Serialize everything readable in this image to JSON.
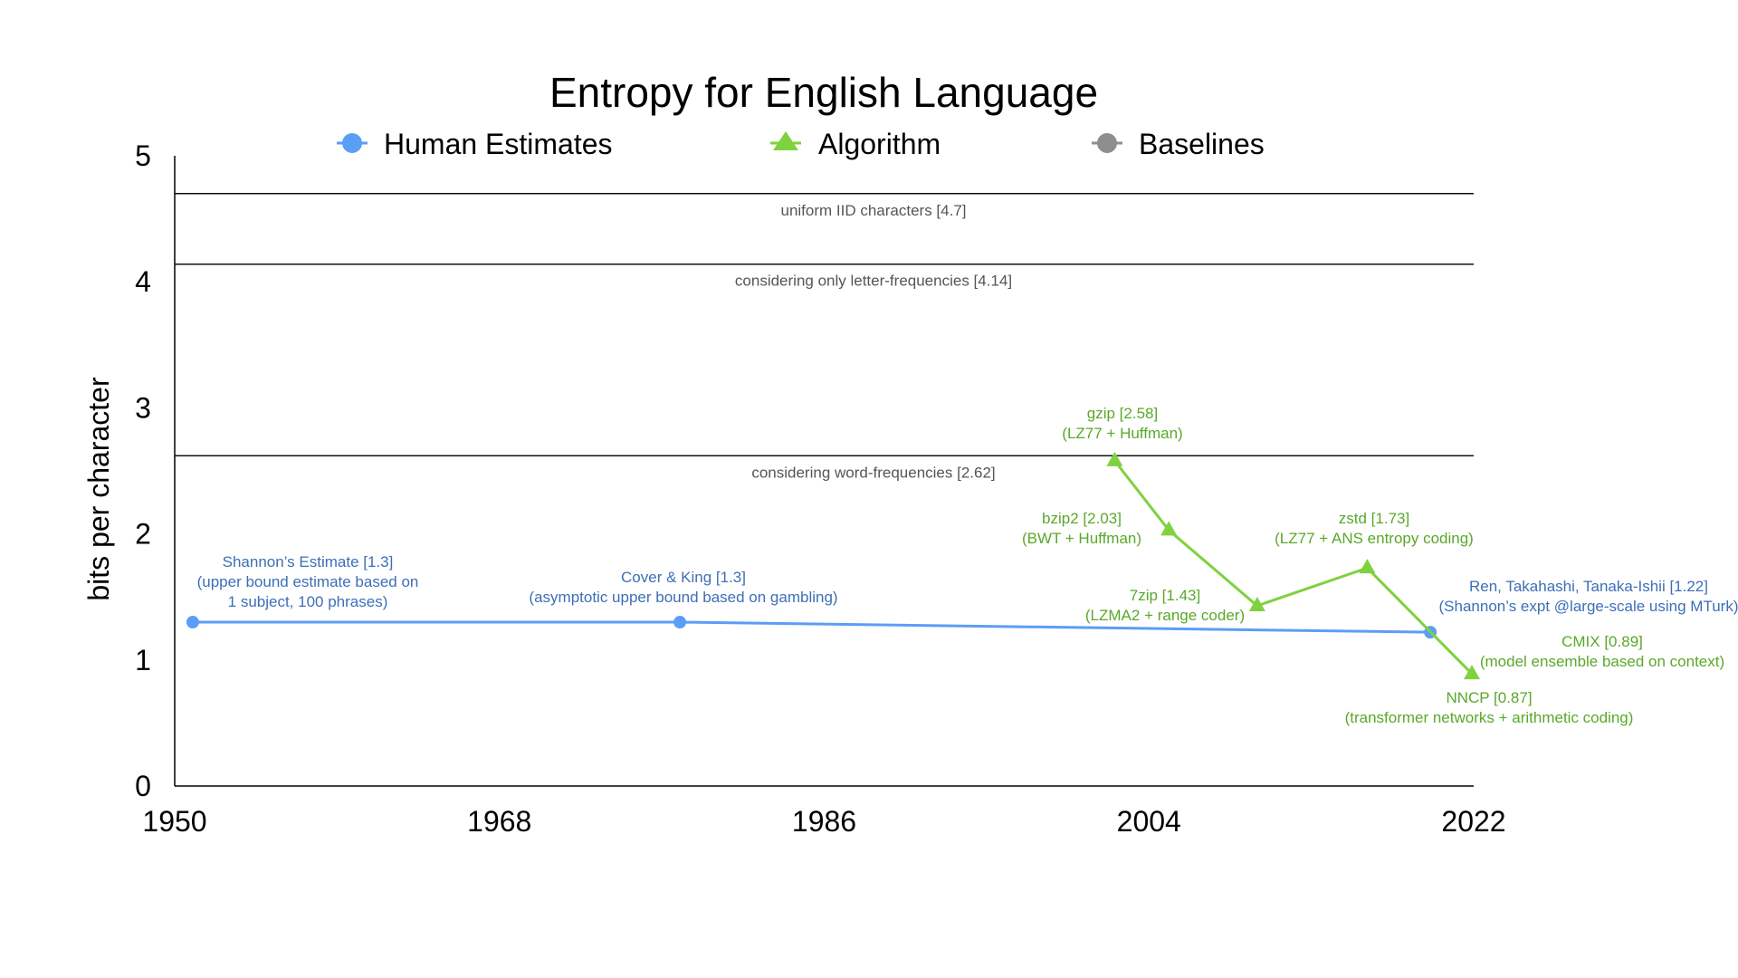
{
  "chart_data": {
    "type": "line",
    "title": "Entropy for English Language",
    "xlabel": "",
    "ylabel": "bits per character",
    "xlim": [
      1950,
      2022
    ],
    "ylim": [
      0,
      5
    ],
    "xticks": [
      1950,
      1968,
      1986,
      2004,
      2022
    ],
    "yticks": [
      0,
      1,
      2,
      3,
      4,
      5
    ],
    "legend": [
      {
        "name": "Human Estimates",
        "marker": "circle",
        "color": "#5b9ef5"
      },
      {
        "name": "Algorithm",
        "marker": "triangle",
        "color": "#7ed23e"
      },
      {
        "name": "Baselines",
        "marker": "circle",
        "color": "#8e8e8e"
      }
    ],
    "series": [
      {
        "name": "Human Estimates",
        "color": "#5b9ef5",
        "label_color": "#3d6fb8",
        "marker": "circle",
        "points": [
          {
            "x": 1951,
            "y": 1.3,
            "lines": [
              "Shannon’s Estimate [1.3]",
              "(upper bound estimate based on",
              "1 subject, 100 phrases)"
            ]
          },
          {
            "x": 1978,
            "y": 1.3,
            "lines": [
              "Cover & King [1.3]",
              "(asymptotic upper bound based on gambling)"
            ]
          },
          {
            "x": 2019.6,
            "y": 1.22,
            "lines": [
              "Ren, Takahashi, Tanaka-Ishii [1.22]",
              "(Shannon’s expt @large-scale using MTurk)"
            ]
          }
        ]
      },
      {
        "name": "Algorithm",
        "color": "#7ed23e",
        "label_color": "#5aa82a",
        "marker": "triangle",
        "points": [
          {
            "x": 2002.1,
            "y": 2.58,
            "lines": [
              "gzip [2.58]",
              "(LZ77 + Huffman)"
            ]
          },
          {
            "x": 2005.1,
            "y": 2.03,
            "lines": [
              "bzip2 [2.03]",
              "(BWT + Huffman)"
            ]
          },
          {
            "x": 2010.0,
            "y": 1.43,
            "lines": [
              "7zip [1.43]",
              "(LZMA2 + range coder)"
            ]
          },
          {
            "x": 2016.1,
            "y": 1.73,
            "lines": [
              "zstd [1.73]",
              "(LZ77 + ANS entropy coding)"
            ]
          },
          {
            "x": 2021.9,
            "y": 0.89,
            "lines": [
              "CMIX [0.89]",
              "(model ensemble based on context)"
            ]
          },
          {
            "x": 2021.9,
            "y": 0.87,
            "lines": [
              "NNCP [0.87]",
              "(transformer networks + arithmetic coding)"
            ],
            "hide_marker": true
          }
        ]
      }
    ],
    "baselines": [
      {
        "y": 4.7,
        "label": "uniform IID characters [4.7]"
      },
      {
        "y": 4.14,
        "label": "considering only letter-frequencies [4.14]"
      },
      {
        "y": 2.62,
        "label": "considering word-frequencies [2.62]"
      }
    ]
  }
}
